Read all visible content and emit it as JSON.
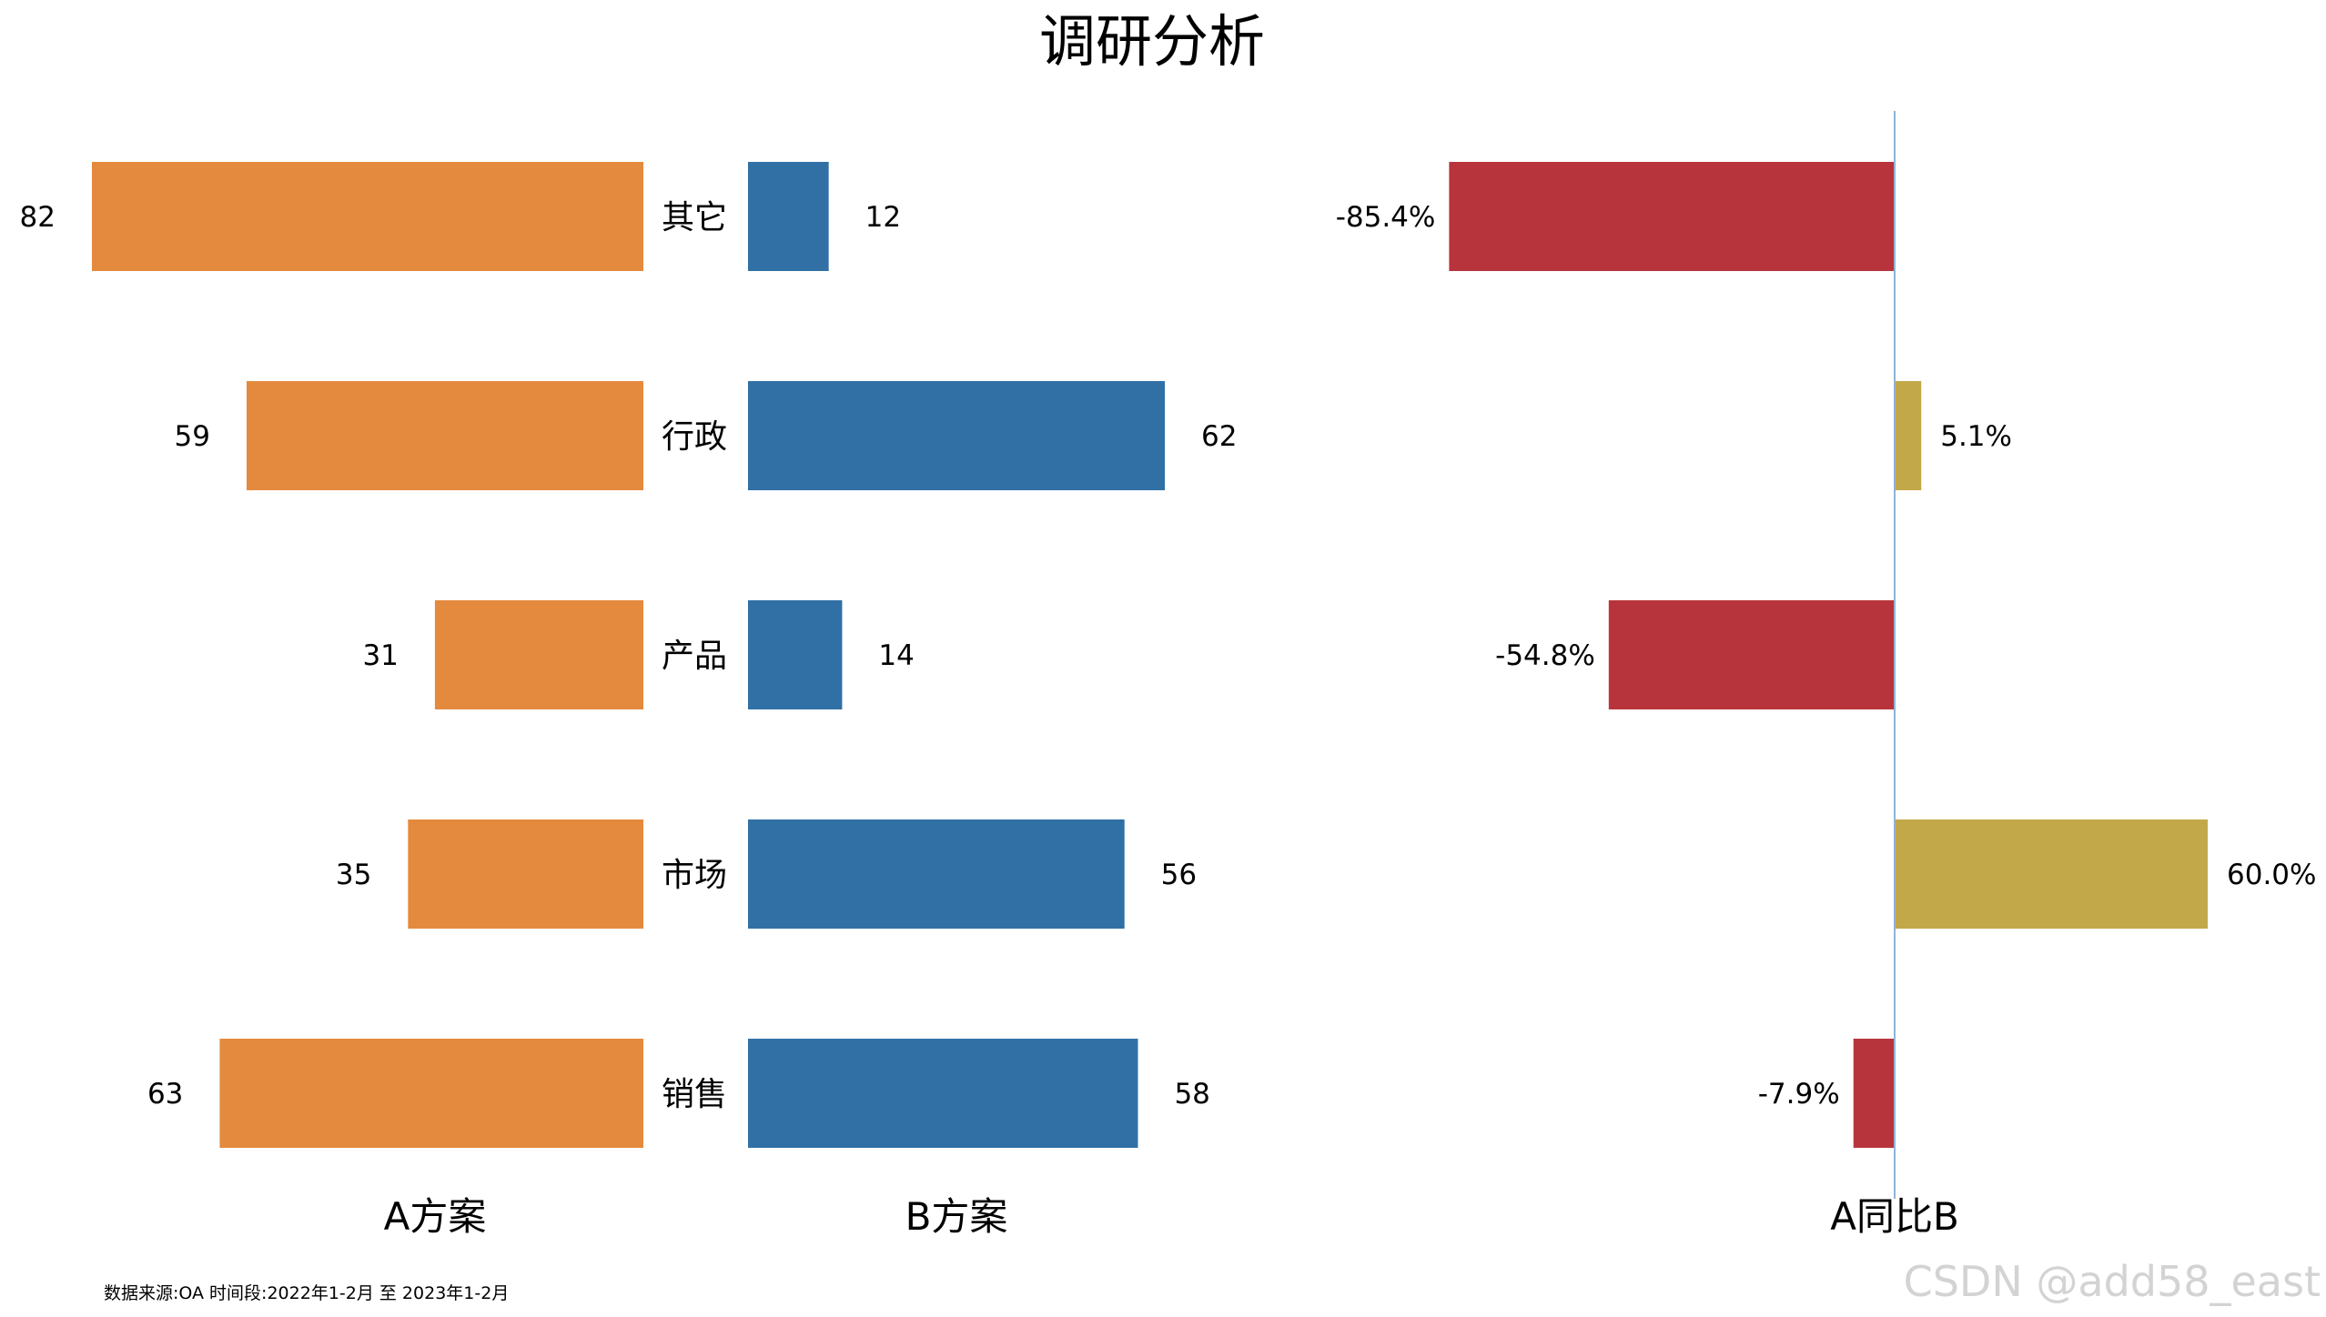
{
  "chart_data": {
    "type": "bar",
    "title": "调研分析",
    "categories": [
      "其它",
      "行政",
      "产品",
      "市场",
      "销售"
    ],
    "series": [
      {
        "name": "A方案",
        "values": [
          82,
          59,
          31,
          35,
          63
        ],
        "color": "#E48A3E"
      },
      {
        "name": "B方案",
        "values": [
          12,
          62,
          14,
          56,
          58
        ],
        "color": "#3070A5"
      },
      {
        "name": "A同比B",
        "values": [
          -85.4,
          5.1,
          -54.8,
          60.0,
          -7.9
        ],
        "value_labels": [
          "-85.4%",
          "5.1%",
          "-54.8%",
          "60.0%",
          "-7.9%"
        ],
        "positive_color": "#C3A84A",
        "negative_color": "#B8343C"
      }
    ],
    "xlim_a": [
      0,
      90
    ],
    "xlim_b": [
      0,
      90
    ],
    "xlim_ratio": [
      -90,
      90
    ],
    "grid": false
  },
  "footer": {
    "source": "数据来源:OA 时间段:2022年1-2月 至 2023年1-2月"
  },
  "watermark": "CSDN @add58_east",
  "colors": {
    "zero_line": "#8FB4D2"
  }
}
